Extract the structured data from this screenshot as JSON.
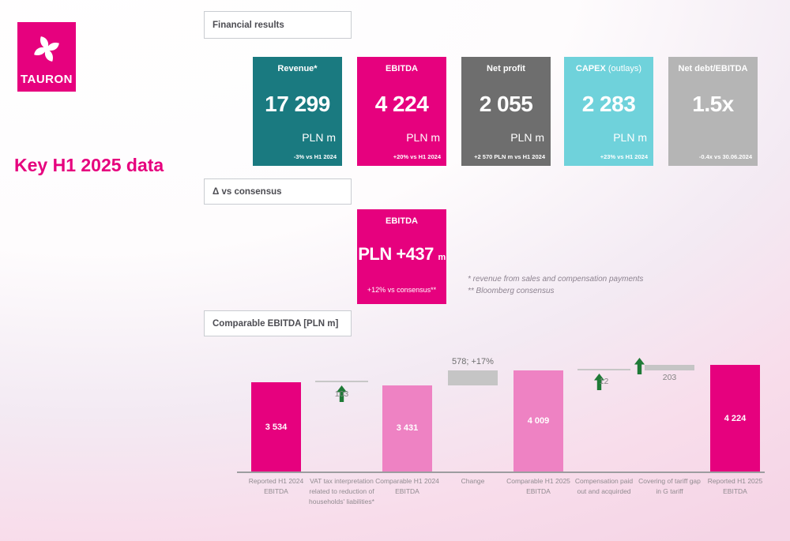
{
  "brand": {
    "logo_text": "TAURON"
  },
  "page_title": "Key H1 2025 data",
  "sections": {
    "financial_results": "Financial results",
    "vs_consensus": "Δ vs consensus",
    "comparable_ebitda": "Comparable EBITDA [PLN m]"
  },
  "colors": {
    "magenta": "#e6017e",
    "teal": "#1a7a80",
    "gray": "#6e6e6e",
    "cyan": "#6fd2db",
    "light_gray": "#b5b5b5",
    "light_pink": "#ee82c3",
    "change_gray": "#c5c5c5",
    "arrow_green": "#1f7a37"
  },
  "kpi_cards": [
    {
      "title": "Revenue*",
      "title_suffix": "",
      "value": "17 299",
      "unit": "PLN m",
      "delta": "-3% vs H1 2024",
      "color": "#1a7a80"
    },
    {
      "title": "EBITDA",
      "title_suffix": "",
      "value": "4 224",
      "unit": "PLN m",
      "delta": "+20% vs H1 2024",
      "color": "#e6017e"
    },
    {
      "title": "Net profit",
      "title_suffix": "",
      "value": "2 055",
      "unit": "PLN m",
      "delta": "+2 570 PLN m vs H1 2024",
      "color": "#6e6e6e"
    },
    {
      "title": "CAPEX",
      "title_suffix": " (outlays)",
      "value": "2 283",
      "unit": "PLN m",
      "delta": "+23% vs H1 2024",
      "color": "#6fd2db"
    },
    {
      "title": "Net debt/EBITDA",
      "title_suffix": "",
      "value": "1.5x",
      "unit": "",
      "delta": "-0.4x  vs  30.06.2024",
      "color": "#b5b5b5"
    }
  ],
  "consensus_card": {
    "title": "EBITDA",
    "value": "PLN +437",
    "value_unit": "m",
    "delta": "+12% vs consensus**",
    "color": "#e6017e"
  },
  "footnotes": {
    "line1": "* revenue from sales and compensation payments",
    "line2": "** Bloomberg consensus"
  },
  "chart_data": {
    "type": "bar",
    "subtype": "waterfall",
    "title": "Comparable EBITDA [PLN m]",
    "xlabel": "",
    "ylabel": "PLN m",
    "ylim": [
      0,
      4700
    ],
    "grid": false,
    "legend": "none",
    "categories": [
      "Reported H1 2024 EBITDA",
      "VAT tax interpretation related to reduction of households' liabilities*",
      "Comparable H1 2024 EBITDA",
      "Change",
      "Comparable H1 2025 EBITDA",
      "Compensation paid out and acquirded",
      "Covering of tariff gap in G tariff",
      "Reported H1 2025 EBITDA"
    ],
    "values": [
      3534,
      -103,
      3431,
      578,
      4009,
      12,
      203,
      4224
    ],
    "columns": [
      {
        "kind": "bar",
        "category": "Reported H1 2024 EBITDA",
        "value": 3534,
        "label": "3 534",
        "color": "#e6017e"
      },
      {
        "kind": "step",
        "category": "VAT tax interpretation related to reduction of households' liabilities*",
        "value": -103,
        "label": "103",
        "level": 3534,
        "arrow": "up",
        "arrow_first": false
      },
      {
        "kind": "bar",
        "category": "Comparable H1 2024 EBITDA",
        "value": 3431,
        "label": "3 431",
        "color": "#ee82c3"
      },
      {
        "kind": "float",
        "category": "Change",
        "value": 578,
        "label": "578; +17%",
        "from": 3431,
        "to": 4009,
        "color": "#c5c5c5",
        "label_pos": "above"
      },
      {
        "kind": "bar",
        "category": "Comparable H1 2025 EBITDA",
        "value": 4009,
        "label": "4 009",
        "color": "#ee82c3"
      },
      {
        "kind": "step",
        "category": "Compensation paid out and acquirded",
        "value": 12,
        "label": "12",
        "level": 4021,
        "arrow": "up",
        "arrow_first": true
      },
      {
        "kind": "float",
        "category": "Covering of tariff gap in G tariff",
        "value": 203,
        "label": "203",
        "from": 4021,
        "to": 4224,
        "color": "#c5c5c5",
        "label_pos": "below",
        "arrow": "up"
      },
      {
        "kind": "bar",
        "category": "Reported H1 2025 EBITDA",
        "value": 4224,
        "label": "4 224",
        "color": "#e6017e"
      }
    ]
  }
}
